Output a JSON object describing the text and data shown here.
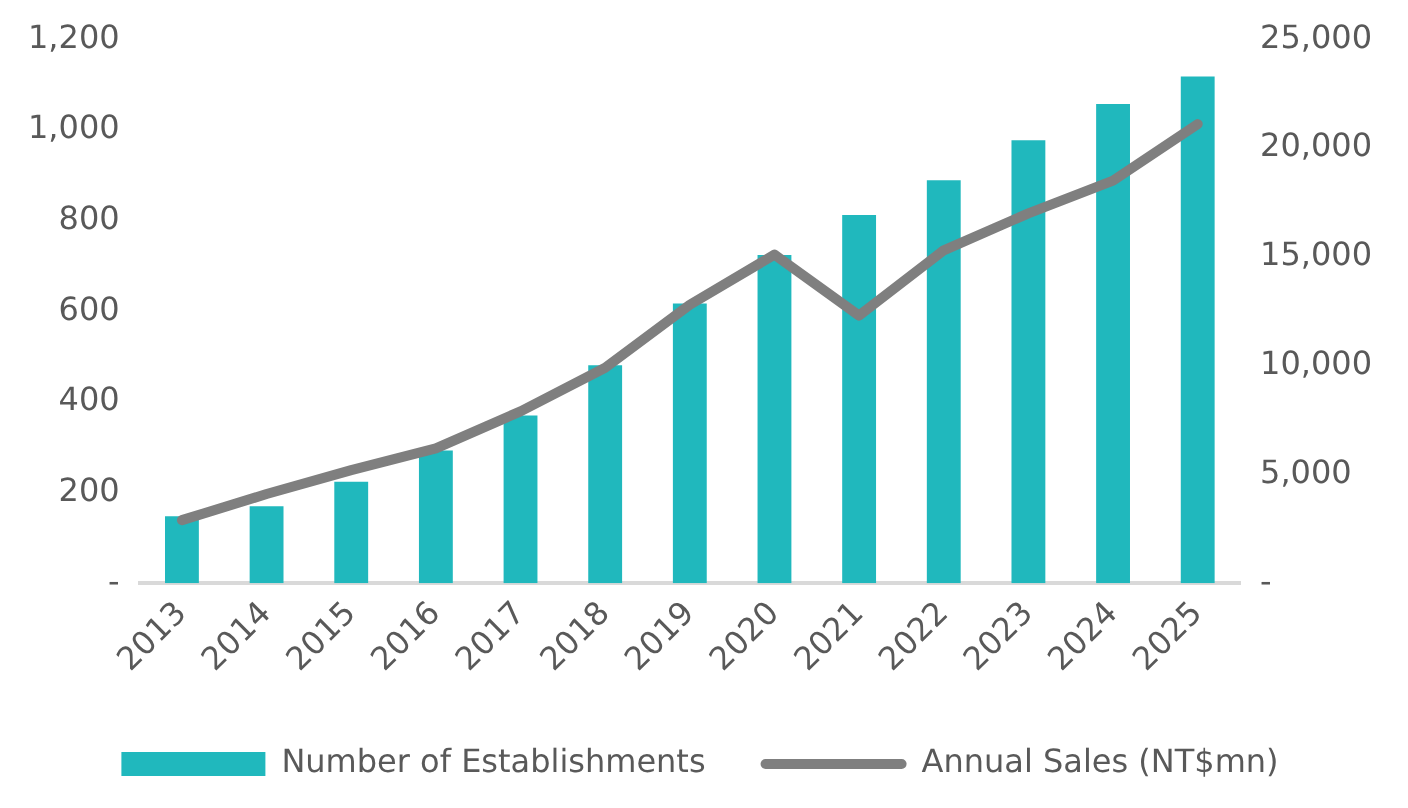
{
  "chart_data": {
    "type": "bar",
    "categories": [
      "2013",
      "2014",
      "2015",
      "2016",
      "2017",
      "2018",
      "2019",
      "2020",
      "2021",
      "2022",
      "2023",
      "2024",
      "2025"
    ],
    "series": [
      {
        "name": "Number of Establishments",
        "color": "#20b8bd",
        "values": [
          148,
          170,
          224,
          293,
          370,
          481,
          617,
          724,
          812,
          889,
          977,
          1057,
          1118
        ]
      },
      {
        "name": "Annual Sales (NT$mn)",
        "type": "line",
        "axis": "y2",
        "color": "#7f7f7f",
        "values": [
          2900,
          4100,
          5200,
          6200,
          7900,
          9900,
          12800,
          15100,
          12300,
          15300,
          17000,
          18500,
          21100
        ]
      }
    ],
    "ylim": [
      0,
      1200
    ],
    "yticks": [
      {
        "value": 0,
        "label": "-"
      },
      200,
      400,
      600,
      800,
      {
        "value": 1000,
        "label": "1,000"
      },
      {
        "value": 1200,
        "label": "1,200"
      }
    ],
    "y2lim": [
      0,
      25000
    ],
    "y2ticks": [
      {
        "value": 0,
        "label": "-"
      },
      {
        "value": 5000,
        "label": "5,000"
      },
      {
        "value": 10000,
        "label": "10,000"
      },
      {
        "value": 15000,
        "label": "15,000"
      },
      {
        "value": 20000,
        "label": "20,000"
      },
      {
        "value": 25000,
        "label": "25,000"
      }
    ],
    "grid": false,
    "legend": "bottom",
    "marker": "none",
    "line_style": "solid"
  }
}
